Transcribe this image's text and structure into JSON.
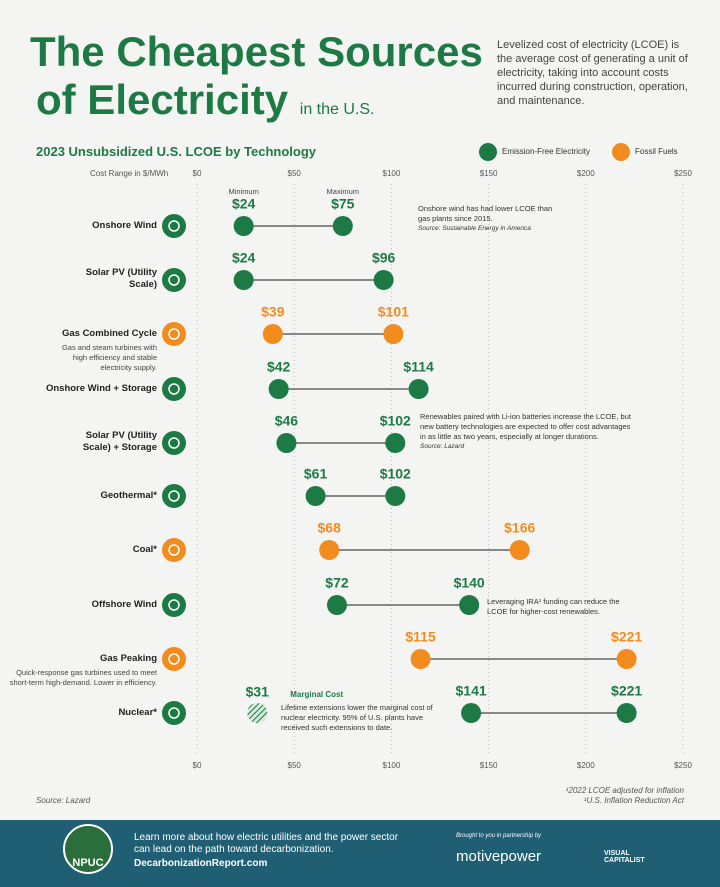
{
  "header": {
    "title_line1": "The Cheapest Sources",
    "title_line2": "of Electricity",
    "title_suffix": "in the U.S.",
    "intro": "Levelized cost of electricity (LCOE) is the average cost of generating a unit of electricity, taking into account costs incurred during construction, operation, and maintenance."
  },
  "chart_data": {
    "type": "dumbbell",
    "title": "2023 Unsubsidized U.S. LCOE by Technology",
    "x_label": "Cost Range in $/MWh",
    "xlim": [
      0,
      250
    ],
    "xticks": [
      {
        "value": 0,
        "label": "$0"
      },
      {
        "value": 50,
        "label": "$50"
      },
      {
        "value": 100,
        "label": "$100"
      },
      {
        "value": 150,
        "label": "$150"
      },
      {
        "value": 200,
        "label": "$200"
      },
      {
        "value": 250,
        "label": "$250"
      }
    ],
    "grid": true,
    "legend": [
      {
        "name": "Emission-Free Electricity",
        "color": "#1d7a45"
      },
      {
        "name": "Fossil Fuels",
        "color": "#f28c1e"
      }
    ],
    "categories": [
      "Onshore Wind",
      "Solar PV (Utility Scale)",
      "Gas Combined Cycle",
      "Onshore Wind + Storage",
      "Solar PV (Utility Scale) + Storage",
      "Geothermal*",
      "Coal*",
      "Offshore Wind",
      "Gas Peaking",
      "Nuclear*"
    ],
    "category_notes": [
      null,
      null,
      "Gas and steam turbines with high efficiency and stable electricity supply.",
      null,
      null,
      null,
      null,
      null,
      "Quick-response gas turbines used to meet short-term high-demand. Lower in efficiency.",
      null
    ],
    "row_colors": [
      "#1d7a45",
      "#1d7a45",
      "#f28c1e",
      "#1d7a45",
      "#1d7a45",
      "#1d7a45",
      "#f28c1e",
      "#1d7a45",
      "#f28c1e",
      "#1d7a45"
    ],
    "series": [
      {
        "name": "Minimum",
        "values": [
          24,
          24,
          39,
          42,
          46,
          61,
          68,
          72,
          115,
          141
        ],
        "value_labels": [
          "$24",
          "$24",
          "$39",
          "$42",
          "$46",
          "$61",
          "$68",
          "$72",
          "$115",
          "$141"
        ]
      },
      {
        "name": "Maximum",
        "values": [
          75,
          96,
          101,
          114,
          102,
          102,
          166,
          140,
          221,
          221
        ],
        "value_labels": [
          "$75",
          "$96",
          "$101",
          "$114",
          "$102",
          "$102",
          "$166",
          "$140",
          "$221",
          "$221"
        ]
      },
      {
        "name": "Marginal Cost",
        "values": [
          null,
          null,
          null,
          null,
          null,
          null,
          null,
          null,
          null,
          31
        ],
        "value_labels": [
          null,
          null,
          null,
          null,
          null,
          null,
          null,
          null,
          null,
          "$31"
        ]
      }
    ],
    "annotations": [
      {
        "text": "Onshore wind has had lower LCOE than gas plants since 2015.",
        "source": "Source: Sustainable Energy in America"
      },
      {
        "text": "Renewables paired with Li-ion batteries increase the LCOE, but new battery technologies are expected to offer cost advantages in as little as two years, especially at longer durations.",
        "source": "Source: Lazard"
      },
      {
        "text": "Leveraging IRA¹ funding can reduce the LCOE for higher-cost renewables.",
        "source": null
      },
      {
        "text": "Lifetime extensions lower the marginal cost of nuclear electricity. 95% of U.S. plants have received such extensions to date.",
        "source": null
      }
    ],
    "source": "Source: Lazard",
    "footnotes": [
      "¹2022 LCOE adjusted for inflation",
      "¹U.S. Inflation Reduction Act"
    ]
  },
  "footer": {
    "logo": "NPUC",
    "text": "Learn more about how electric utilities and the power sector can lead on the path toward decarbonization.",
    "link": "DecarbonizationReport.com",
    "partner_label": "Brought to you in partnership by",
    "partner1": "motivepower",
    "partner2": "VISUAL CAPITALIST"
  }
}
